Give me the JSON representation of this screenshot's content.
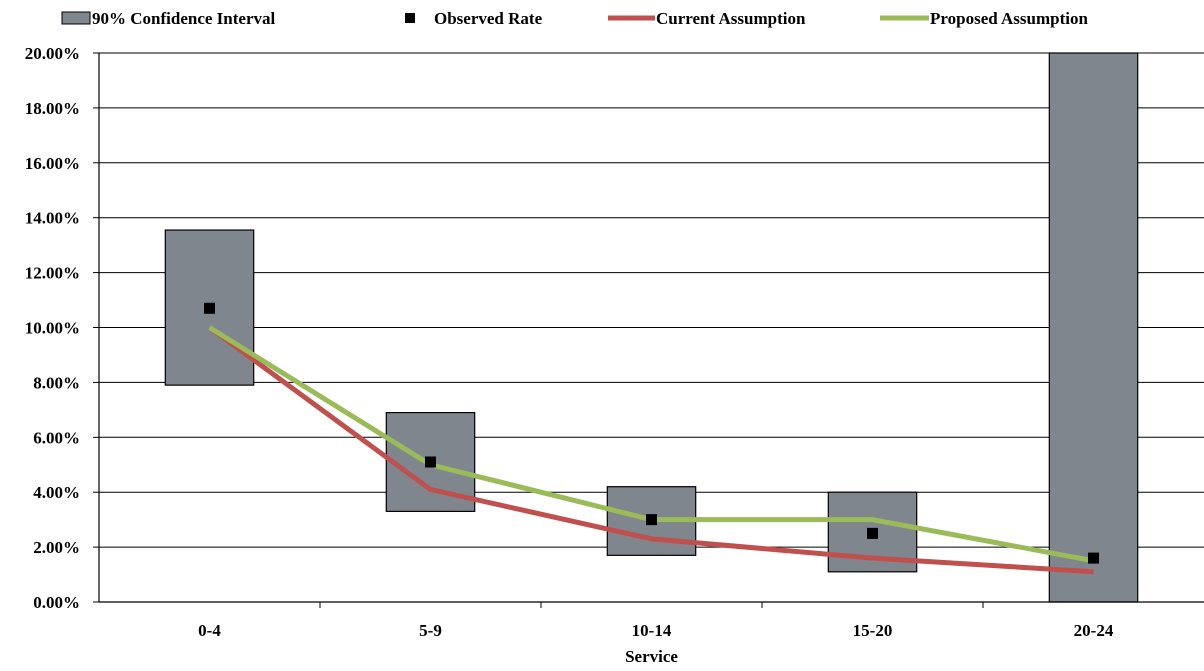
{
  "chart_data": {
    "type": "bar",
    "title": "",
    "xlabel": "Service",
    "ylabel": "",
    "categories": [
      "0-4",
      "5-9",
      "10-14",
      "15-20",
      "20-24"
    ],
    "ylim": [
      0,
      0.2
    ],
    "y_ticks": [
      0,
      0.02,
      0.04,
      0.06,
      0.08,
      0.1,
      0.12,
      0.14,
      0.16,
      0.18,
      0.2
    ],
    "y_tick_labels": [
      "0.00%",
      "2.00%",
      "4.00%",
      "6.00%",
      "8.00%",
      "10.00%",
      "12.00%",
      "14.00%",
      "16.00%",
      "18.00%",
      "20.00%"
    ],
    "grid": "horizontal",
    "legend_position": "top",
    "series": [
      {
        "name": "90% Confidence Interval",
        "kind": "floating-bar",
        "color": "#80868d",
        "low": [
          0.079,
          0.033,
          0.017,
          0.011,
          0.0
        ],
        "high": [
          0.1355,
          0.069,
          0.042,
          0.04,
          0.2
        ]
      },
      {
        "name": "Observed Rate",
        "kind": "marker",
        "color": "#000000",
        "values": [
          0.107,
          0.051,
          0.03,
          0.025,
          0.016
        ]
      },
      {
        "name": "Current Assumption",
        "kind": "line",
        "color": "#c0504d",
        "values": [
          0.1,
          0.041,
          0.023,
          0.016,
          0.011
        ]
      },
      {
        "name": "Proposed Assumption",
        "kind": "line",
        "color": "#9bbb59",
        "values": [
          0.1,
          0.05,
          0.03,
          0.03,
          0.015
        ]
      }
    ]
  }
}
